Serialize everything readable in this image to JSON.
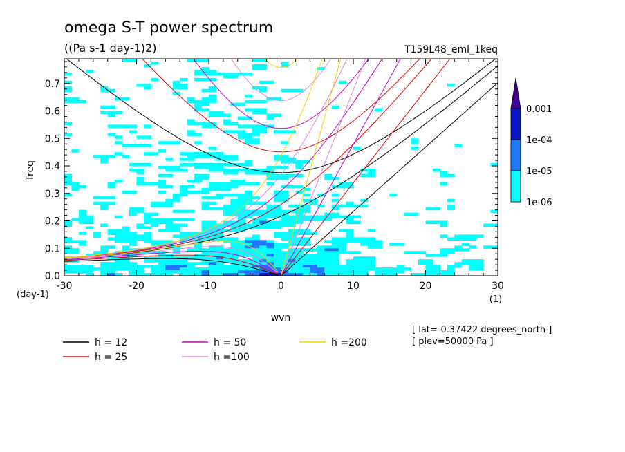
{
  "header": {
    "title": "omega S-T power spectrum",
    "units": "((Pa s-1 day-1)2)",
    "run_id": "T159L48_eml_1keq"
  },
  "info": {
    "lat": "[ lat=-0.37422 degrees_north ]",
    "plev": "[ plev=50000 Pa ]"
  },
  "chart_data": {
    "type": "heatmap",
    "title": "omega S-T power spectrum",
    "subtitle": "((Pa s-1 day-1)2)",
    "xlabel": "wvn",
    "ylabel": "freq",
    "x_unit": "(1)",
    "y_unit": "(day-1)",
    "xlim": [
      -30,
      30
    ],
    "ylim": [
      0,
      0.79
    ],
    "x_ticks": [
      -30,
      -20,
      -10,
      0,
      10,
      20,
      30
    ],
    "x_tick_labels": [
      "-30",
      "-20",
      "-10",
      "0",
      "10",
      "20",
      "30"
    ],
    "y_ticks": [
      0,
      0.1,
      0.2,
      0.3,
      0.4,
      0.5,
      0.6,
      0.7
    ],
    "y_tick_labels": [
      "0.0",
      "0.1",
      "0.2",
      "0.3",
      "0.4",
      "0.5",
      "0.6",
      "0.7"
    ],
    "colorbar": {
      "levels": [
        "1e-06",
        "1e-05",
        "1e-04",
        "0.001"
      ],
      "colors": [
        "#00ffff",
        "#1e78ff",
        "#0a14c8",
        "#3c0096"
      ]
    },
    "dispersion_curves": [
      {
        "name": "h = 12",
        "h": 12,
        "color": "#000000"
      },
      {
        "name": "h = 25",
        "h": 25,
        "color": "#e00000"
      },
      {
        "name": "h = 50",
        "h": 50,
        "color": "#cc00cc"
      },
      {
        "name": "h =100",
        "h": 100,
        "color": "#dd88dd"
      },
      {
        "name": "h =200",
        "h": 200,
        "color": "#f0d000"
      }
    ]
  }
}
